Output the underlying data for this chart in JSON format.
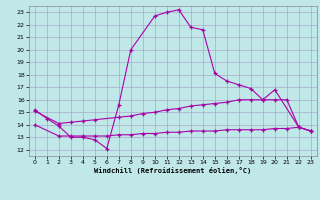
{
  "xlabel": "Windchill (Refroidissement éolien,°C)",
  "background_color": "#c0e8e8",
  "grid_color": "#aaaacc",
  "line_color": "#aa00aa",
  "x_ticks": [
    0,
    1,
    2,
    3,
    4,
    5,
    6,
    7,
    8,
    9,
    10,
    11,
    12,
    13,
    14,
    15,
    16,
    17,
    18,
    19,
    20,
    21,
    22,
    23
  ],
  "y_ticks": [
    12,
    13,
    14,
    15,
    16,
    17,
    18,
    19,
    20,
    21,
    22,
    23
  ],
  "xlim": [
    -0.5,
    23.5
  ],
  "ylim": [
    11.5,
    23.5
  ],
  "series1_x": [
    0,
    1,
    2,
    3,
    4,
    5,
    6,
    7,
    8,
    10,
    11,
    12,
    13,
    14,
    15,
    16,
    17,
    18,
    19,
    20,
    22,
    23
  ],
  "series1_y": [
    15.2,
    14.5,
    13.9,
    13.0,
    13.0,
    12.8,
    12.1,
    15.6,
    20.0,
    22.7,
    23.0,
    23.2,
    21.8,
    21.6,
    18.1,
    17.5,
    17.2,
    16.9,
    16.0,
    16.8,
    13.8,
    13.5
  ],
  "series2_x": [
    0,
    2,
    3,
    4,
    5,
    7,
    8,
    9,
    10,
    11,
    12,
    13,
    14,
    15,
    16,
    17,
    18,
    19,
    20,
    21,
    22,
    23
  ],
  "series2_y": [
    15.1,
    14.1,
    14.2,
    14.3,
    14.4,
    14.6,
    14.7,
    14.9,
    15.0,
    15.2,
    15.3,
    15.5,
    15.6,
    15.7,
    15.8,
    16.0,
    16.0,
    16.0,
    16.0,
    16.0,
    13.8,
    13.5
  ],
  "series3_x": [
    0,
    2,
    3,
    4,
    5,
    6,
    7,
    8,
    9,
    10,
    11,
    12,
    13,
    14,
    15,
    16,
    17,
    18,
    19,
    20,
    21,
    22,
    23
  ],
  "series3_y": [
    14.0,
    13.1,
    13.1,
    13.1,
    13.1,
    13.1,
    13.2,
    13.2,
    13.3,
    13.3,
    13.4,
    13.4,
    13.5,
    13.5,
    13.5,
    13.6,
    13.6,
    13.6,
    13.6,
    13.7,
    13.7,
    13.8,
    13.5
  ]
}
